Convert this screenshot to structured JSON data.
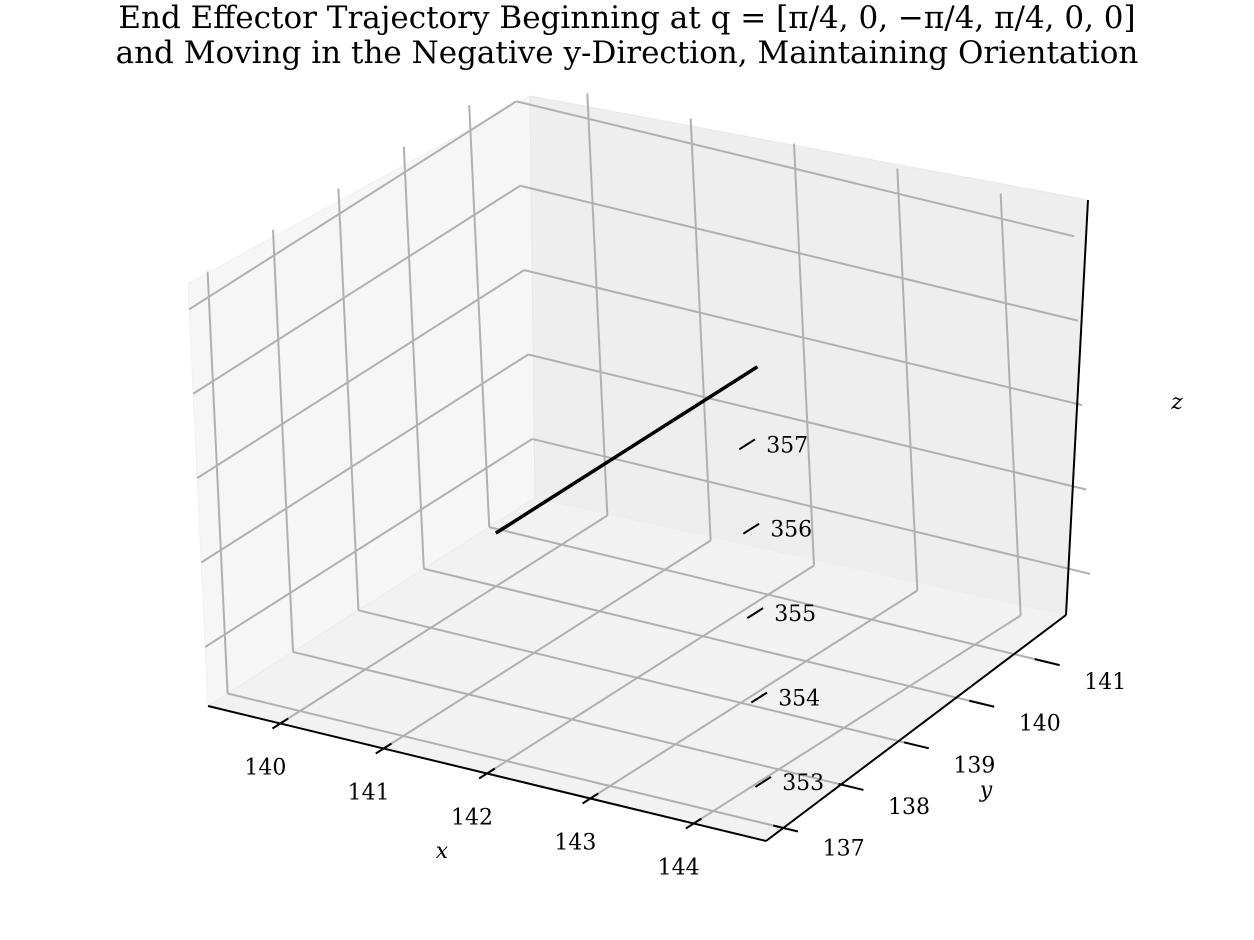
{
  "chart_data": {
    "type": "line",
    "title_line1": "End Effector Trajectory Beginning at q = [π/4, 0, −π/4, π/4, 0, 0]",
    "title_line2": "and Moving in the Negative y-Direction, Maintaining Orientation",
    "xlabel": "x",
    "ylabel": "y",
    "zlabel": "z",
    "xlim": [
      139.3,
      144.7
    ],
    "ylim": [
      136.7,
      141.7
    ],
    "zlim": [
      352.3,
      357.3
    ],
    "x_ticks": [
      "140",
      "141",
      "142",
      "143",
      "144"
    ],
    "y_ticks": [
      "137",
      "138",
      "139",
      "140",
      "141"
    ],
    "z_ticks": [
      "353",
      "354",
      "355",
      "356",
      "357"
    ],
    "grid": true,
    "series": [
      {
        "color": "#000000",
        "points": [
          {
            "x": 142.0,
            "y": 141.0,
            "z": 355.0
          },
          {
            "x": 142.0,
            "y": 137.0,
            "z": 355.0
          }
        ]
      }
    ]
  }
}
